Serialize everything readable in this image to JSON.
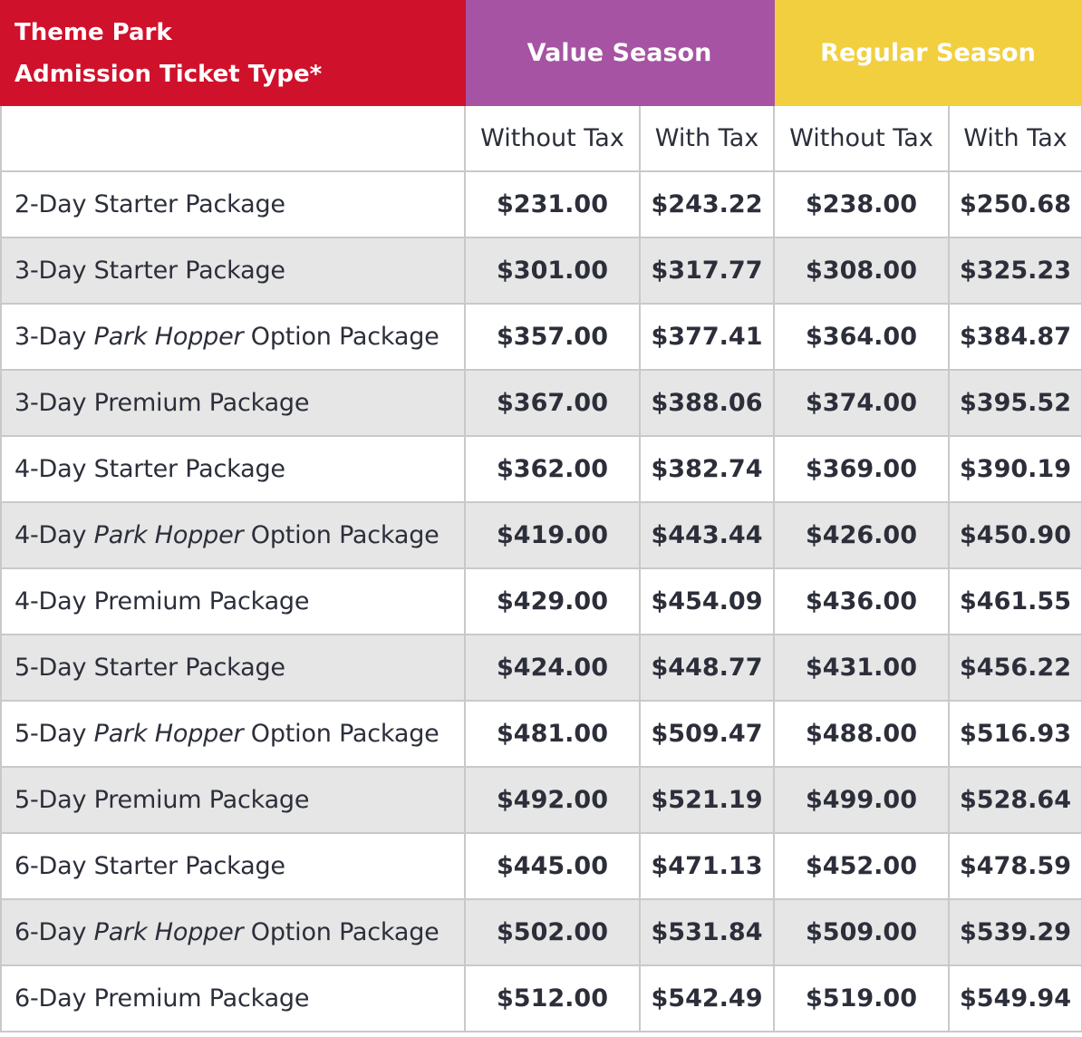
{
  "header": {
    "title_line1": "Theme Park",
    "title_line2": "Admission Ticket Type*",
    "value_season": "Value Season",
    "regular_season": "Regular Season"
  },
  "subheaders": [
    "Without Tax",
    "With Tax",
    "Without Tax",
    "With Tax"
  ],
  "colors": {
    "title_bg": "#d0112b",
    "value_bg": "#a653a3",
    "regular_bg": "#f2cf3e",
    "alt_row_bg": "#e6e6e6",
    "text": "#2c2f3a"
  },
  "rows": [
    {
      "prefix": "2-Day ",
      "italic": "",
      "suffix": "Starter Package",
      "prices": [
        "$231.00",
        "$243.22",
        "$238.00",
        "$250.68"
      ]
    },
    {
      "prefix": "3-Day ",
      "italic": "",
      "suffix": "Starter Package",
      "prices": [
        "$301.00",
        "$317.77",
        "$308.00",
        "$325.23"
      ]
    },
    {
      "prefix": "3-Day ",
      "italic": "Park Hopper",
      "suffix": " Option Package",
      "prices": [
        "$357.00",
        "$377.41",
        "$364.00",
        "$384.87"
      ]
    },
    {
      "prefix": "3-Day ",
      "italic": "",
      "suffix": "Premium Package",
      "prices": [
        "$367.00",
        "$388.06",
        "$374.00",
        "$395.52"
      ]
    },
    {
      "prefix": "4-Day ",
      "italic": "",
      "suffix": "Starter Package",
      "prices": [
        "$362.00",
        "$382.74",
        "$369.00",
        "$390.19"
      ]
    },
    {
      "prefix": "4-Day ",
      "italic": "Park Hopper",
      "suffix": " Option Package",
      "prices": [
        "$419.00",
        "$443.44",
        "$426.00",
        "$450.90"
      ]
    },
    {
      "prefix": "4-Day ",
      "italic": "",
      "suffix": "Premium Package",
      "prices": [
        "$429.00",
        "$454.09",
        "$436.00",
        "$461.55"
      ]
    },
    {
      "prefix": "5-Day ",
      "italic": "",
      "suffix": "Starter Package",
      "prices": [
        "$424.00",
        "$448.77",
        "$431.00",
        "$456.22"
      ]
    },
    {
      "prefix": "5-Day ",
      "italic": "Park Hopper",
      "suffix": " Option Package",
      "prices": [
        "$481.00",
        "$509.47",
        "$488.00",
        "$516.93"
      ]
    },
    {
      "prefix": "5-Day ",
      "italic": "",
      "suffix": "Premium Package",
      "prices": [
        "$492.00",
        "$521.19",
        "$499.00",
        "$528.64"
      ]
    },
    {
      "prefix": "6-Day ",
      "italic": "",
      "suffix": "Starter Package",
      "prices": [
        "$445.00",
        "$471.13",
        "$452.00",
        "$478.59"
      ]
    },
    {
      "prefix": "6-Day ",
      "italic": "Park Hopper",
      "suffix": " Option Package",
      "prices": [
        "$502.00",
        "$531.84",
        "$509.00",
        "$539.29"
      ]
    },
    {
      "prefix": "6-Day ",
      "italic": "",
      "suffix": "Premium Package",
      "prices": [
        "$512.00",
        "$542.49",
        "$519.00",
        "$549.94"
      ]
    }
  ]
}
